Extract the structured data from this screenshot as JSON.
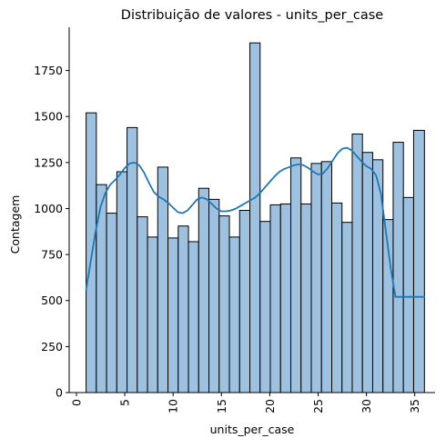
{
  "chart_data": {
    "type": "bar",
    "title": "Distribuição de valores - units_per_case",
    "xlabel": "units_per_case",
    "ylabel": "Contagem",
    "xlim": [
      -0.75,
      37.1
    ],
    "ylim": [
      0,
      1985
    ],
    "x_ticks": [
      0,
      5,
      10,
      15,
      20,
      25,
      30,
      35
    ],
    "x_tick_labels": [
      "0",
      "5",
      "10",
      "15",
      "20",
      "25",
      "30",
      "35"
    ],
    "y_ticks": [
      0,
      250,
      500,
      750,
      1000,
      1250,
      1500,
      1750
    ],
    "y_tick_labels": [
      "0",
      "250",
      "500",
      "750",
      "1000",
      "1250",
      "1500",
      "1750"
    ],
    "bin_edges": [
      1.0,
      2.0588,
      3.1176,
      4.1765,
      5.2353,
      6.2941,
      7.3529,
      8.4118,
      9.4706,
      10.5294,
      11.5882,
      12.6471,
      13.7059,
      14.7647,
      15.8235,
      16.8824,
      17.9412,
      19.0,
      20.0588,
      21.1176,
      22.1765,
      23.2353,
      24.2941,
      25.3529,
      26.4118,
      27.4706,
      28.5294,
      29.5882,
      30.6471,
      31.7059,
      32.7647,
      33.8235,
      34.8824,
      36.0
    ],
    "counts": [
      1520,
      1130,
      975,
      1200,
      1440,
      955,
      845,
      1225,
      840,
      905,
      820,
      1110,
      1050,
      960,
      845,
      990,
      1900,
      930,
      1020,
      1025,
      1275,
      1025,
      1245,
      1255,
      1030,
      925,
      1405,
      1305,
      1265,
      940,
      1360,
      1060,
      1425
    ],
    "kde_line": {
      "x": [
        1,
        1.5,
        2,
        2.5,
        3,
        3.5,
        4,
        4.5,
        5,
        5.5,
        6,
        6.5,
        7,
        7.5,
        8,
        8.5,
        9,
        9.5,
        10,
        10.5,
        11,
        11.5,
        12,
        12.5,
        13,
        13.5,
        14,
        14.5,
        15,
        15.5,
        16,
        16.5,
        17,
        17.5,
        18,
        18.5,
        19,
        19.5,
        20,
        20.5,
        21,
        21.5,
        22,
        22.5,
        23,
        23.5,
        24,
        24.5,
        25,
        25.5,
        26,
        26.5,
        27,
        27.5,
        28,
        28.5,
        29,
        29.5,
        30,
        30.5,
        31,
        31.5,
        32,
        32.5,
        33,
        33.5,
        34,
        34.5,
        35,
        35.5,
        36
      ],
      "y": [
        560,
        720,
        880,
        1010,
        1085,
        1130,
        1155,
        1185,
        1220,
        1245,
        1250,
        1235,
        1195,
        1140,
        1090,
        1065,
        1050,
        1030,
        1005,
        980,
        975,
        990,
        1020,
        1050,
        1060,
        1050,
        1025,
        1000,
        985,
        985,
        990,
        1000,
        1015,
        1030,
        1045,
        1060,
        1085,
        1115,
        1145,
        1175,
        1200,
        1215,
        1225,
        1235,
        1240,
        1235,
        1220,
        1200,
        1185,
        1190,
        1220,
        1260,
        1300,
        1325,
        1330,
        1315,
        1285,
        1255,
        1230,
        1215,
        1180,
        1080,
        880,
        680,
        520,
        520,
        520,
        520,
        520,
        520,
        520
      ]
    },
    "colors": {
      "bar_fill": "#9dc1de",
      "bar_edge": "#000000",
      "kde_line": "#1f77b4",
      "axis": "#000000"
    },
    "grid": false,
    "legend": "none"
  }
}
